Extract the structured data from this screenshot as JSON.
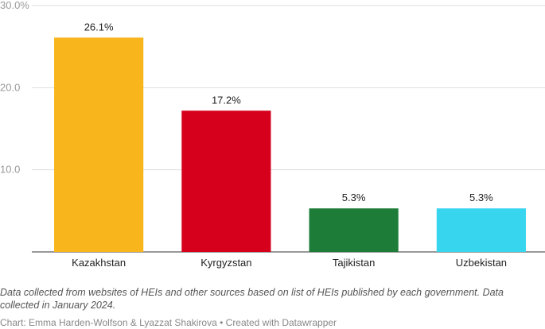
{
  "chart_data": {
    "type": "bar",
    "categories": [
      "Kazakhstan",
      "Kyrgyzstan",
      "Tajikistan",
      "Uzbekistan"
    ],
    "values": [
      26.1,
      17.2,
      5.3,
      5.3
    ],
    "value_labels": [
      "26.1%",
      "17.2%",
      "5.3%",
      "5.3%"
    ],
    "colors": [
      "#f9b51c",
      "#d6001c",
      "#1d7d38",
      "#38d5ee"
    ],
    "ylim": [
      0,
      30
    ],
    "yticks": [
      {
        "value": 10,
        "label": "10.0"
      },
      {
        "value": 20,
        "label": "20.0"
      },
      {
        "value": 30,
        "label": "30.0%"
      }
    ],
    "grid": true,
    "note": "Data collected from websites of HEIs and other sources based on list of HEIs published by each government. Data collected in January 2024.",
    "credit": "Chart: Emma Harden-Wolfson & Lyazzat Shakirova • Created with Datawrapper"
  }
}
